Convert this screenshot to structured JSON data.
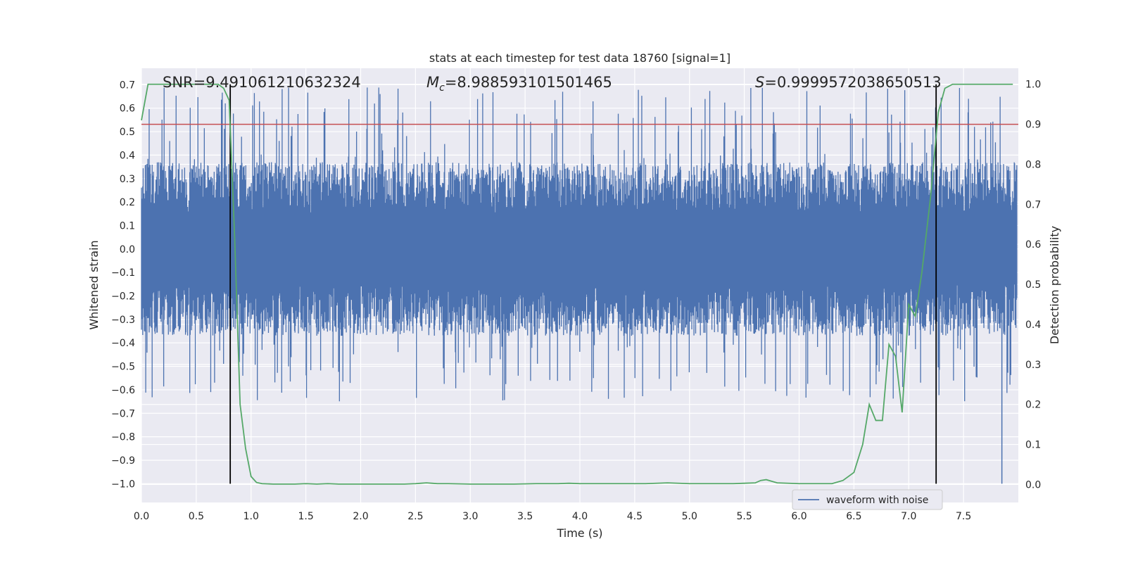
{
  "chart_data": {
    "type": "line",
    "title": "stats at each timestep for test data 18760 [signal=1]",
    "xlabel": "Time (s)",
    "ylabel_left": "Whitened strain",
    "ylabel_right": "Detection probability",
    "xlim": [
      0.0,
      8.0
    ],
    "ylim_left": [
      -1.08,
      0.77
    ],
    "ylim_right": [
      -0.045,
      1.04
    ],
    "xticks": [
      "0.0",
      "0.5",
      "1.0",
      "1.5",
      "2.0",
      "2.5",
      "3.0",
      "3.5",
      "4.0",
      "4.5",
      "5.0",
      "5.5",
      "6.0",
      "6.5",
      "7.0",
      "7.5"
    ],
    "yticks_left": [
      "0.7",
      "0.6",
      "0.5",
      "0.4",
      "0.3",
      "0.2",
      "0.1",
      "0.0",
      "−0.1",
      "−0.2",
      "−0.3",
      "−0.4",
      "−0.5",
      "−0.6",
      "−0.7",
      "−0.8",
      "−0.9",
      "−1.0"
    ],
    "yticks_right": [
      "1.0",
      "0.9",
      "0.8",
      "0.7",
      "0.6",
      "0.5",
      "0.4",
      "0.3",
      "0.2",
      "0.1",
      "0.0"
    ],
    "annotations": {
      "snr": "SNR=9.491061210632324",
      "mc_symbol": "M",
      "mc_sub": "c",
      "mc_value": "=8.988593101501465",
      "s_symbol": "S",
      "s_value": "=0.9999572038650513"
    },
    "threshold_line": {
      "axis": "right",
      "value": 0.9,
      "color": "#c44e52"
    },
    "vertical_lines": [
      0.81,
      7.25
    ],
    "waveform": {
      "name": "waveform with noise",
      "color": "#4c72b0",
      "samples": 2048,
      "core_amplitude": 0.15,
      "spike_max": 0.69,
      "min_value": -1.0
    },
    "detection_probability": {
      "color": "#55a868",
      "x": [
        0.0,
        0.06,
        0.12,
        0.2,
        0.3,
        0.4,
        0.5,
        0.6,
        0.7,
        0.75,
        0.8,
        0.85,
        0.9,
        0.95,
        1.0,
        1.05,
        1.1,
        1.2,
        1.3,
        1.4,
        1.5,
        1.6,
        1.7,
        1.8,
        2.0,
        2.2,
        2.4,
        2.5,
        2.55,
        2.6,
        2.65,
        2.7,
        2.8,
        3.0,
        3.2,
        3.4,
        3.6,
        3.8,
        3.9,
        4.0,
        4.2,
        4.4,
        4.6,
        4.8,
        5.0,
        5.2,
        5.4,
        5.5,
        5.6,
        5.65,
        5.7,
        5.75,
        5.8,
        6.0,
        6.2,
        6.3,
        6.4,
        6.5,
        6.58,
        6.64,
        6.7,
        6.76,
        6.82,
        6.88,
        6.94,
        7.0,
        7.06,
        7.12,
        7.2,
        7.27,
        7.33,
        7.4,
        7.5,
        7.6,
        7.8,
        7.95
      ],
      "y": [
        0.91,
        1.0,
        1.0,
        1.0,
        1.0,
        1.0,
        1.0,
        1.0,
        1.0,
        0.99,
        0.96,
        0.62,
        0.2,
        0.09,
        0.02,
        0.005,
        0.002,
        0.001,
        0.001,
        0.001,
        0.002,
        0.001,
        0.002,
        0.001,
        0.001,
        0.001,
        0.001,
        0.002,
        0.003,
        0.004,
        0.003,
        0.002,
        0.002,
        0.001,
        0.001,
        0.001,
        0.002,
        0.002,
        0.003,
        0.002,
        0.002,
        0.002,
        0.002,
        0.004,
        0.002,
        0.002,
        0.002,
        0.003,
        0.004,
        0.01,
        0.012,
        0.008,
        0.004,
        0.002,
        0.002,
        0.002,
        0.01,
        0.03,
        0.1,
        0.2,
        0.16,
        0.16,
        0.35,
        0.32,
        0.18,
        0.45,
        0.42,
        0.53,
        0.72,
        0.93,
        0.99,
        1.0,
        1.0,
        1.0,
        1.0,
        1.0
      ]
    },
    "legend": {
      "label": "waveform with noise",
      "placement": "lower-right"
    }
  }
}
